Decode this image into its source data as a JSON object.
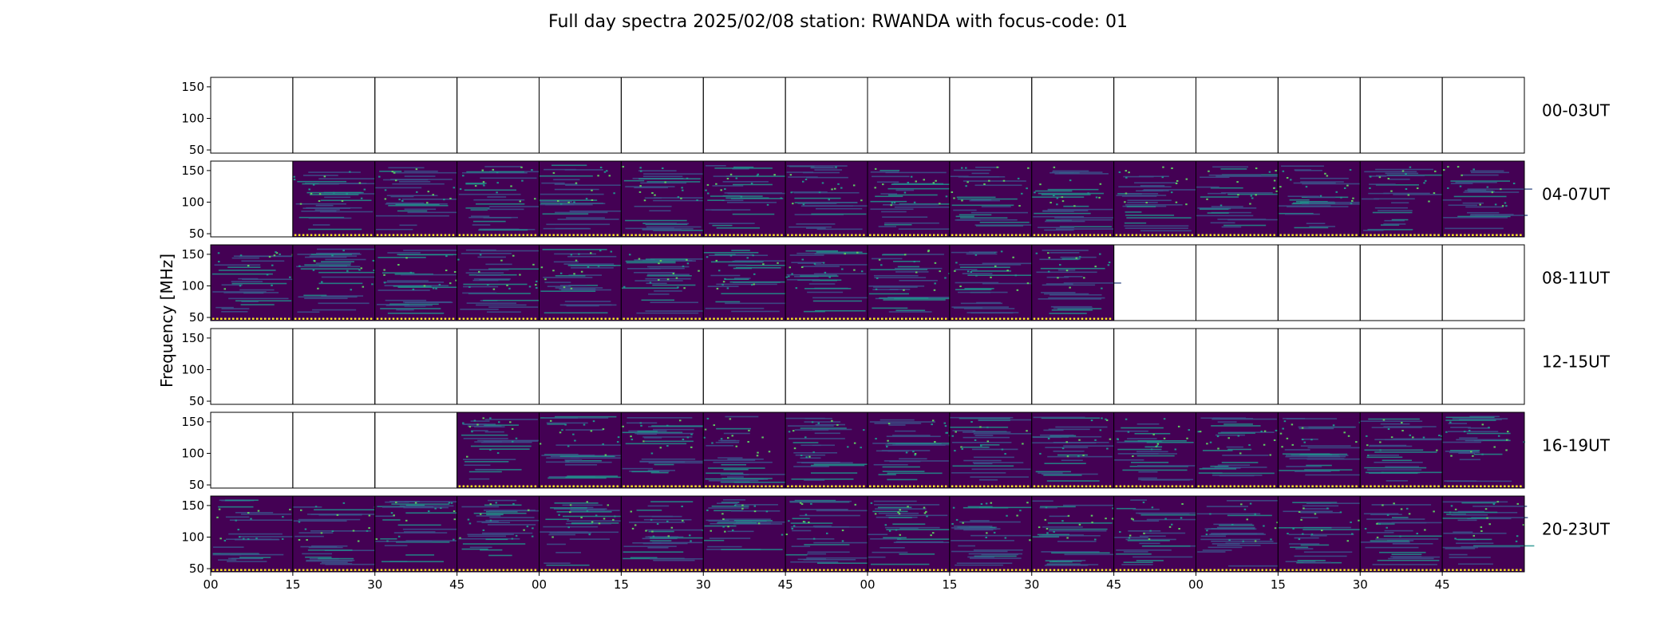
{
  "chart_data": {
    "type": "heatmap",
    "title": "Full day spectra 2025/02/08 station: RWANDA with focus-code: 01",
    "ylabel": "Frequency [MHz]",
    "ylim": [
      45,
      165
    ],
    "y_ticks": [
      "150",
      "100",
      "50"
    ],
    "x_ticks": [
      "00",
      "15",
      "30",
      "45",
      "00",
      "15",
      "30",
      "45",
      "00",
      "15",
      "30",
      "45",
      "00",
      "15",
      "30",
      "45"
    ],
    "colormap": [
      "#440154",
      "#3b528b",
      "#21918c",
      "#5ec962",
      "#fde725"
    ],
    "rows": [
      {
        "label": "00-03UT",
        "data_present": [
          0,
          0,
          0,
          0,
          0,
          0,
          0,
          0,
          0,
          0,
          0,
          0,
          0,
          0,
          0,
          0
        ]
      },
      {
        "label": "04-07UT",
        "data_present": [
          0,
          1,
          1,
          1,
          1,
          1,
          1,
          1,
          1,
          1,
          1,
          1,
          1,
          1,
          1,
          1
        ]
      },
      {
        "label": "08-11UT",
        "data_present": [
          1,
          1,
          1,
          1,
          1,
          1,
          1,
          1,
          1,
          1,
          1,
          0,
          0,
          0,
          0,
          0
        ]
      },
      {
        "label": "12-15UT",
        "data_present": [
          0,
          0,
          0,
          0,
          0,
          0,
          0,
          0,
          0,
          0,
          0,
          0,
          0,
          0,
          0,
          0
        ]
      },
      {
        "label": "16-19UT",
        "data_present": [
          0,
          0,
          0,
          1,
          1,
          1,
          1,
          1,
          1,
          1,
          1,
          1,
          1,
          1,
          1,
          1
        ]
      },
      {
        "label": "20-23UT",
        "data_present": [
          1,
          1,
          1,
          1,
          1,
          1,
          1,
          1,
          1,
          1,
          1,
          1,
          1,
          1,
          1,
          1
        ]
      }
    ]
  }
}
